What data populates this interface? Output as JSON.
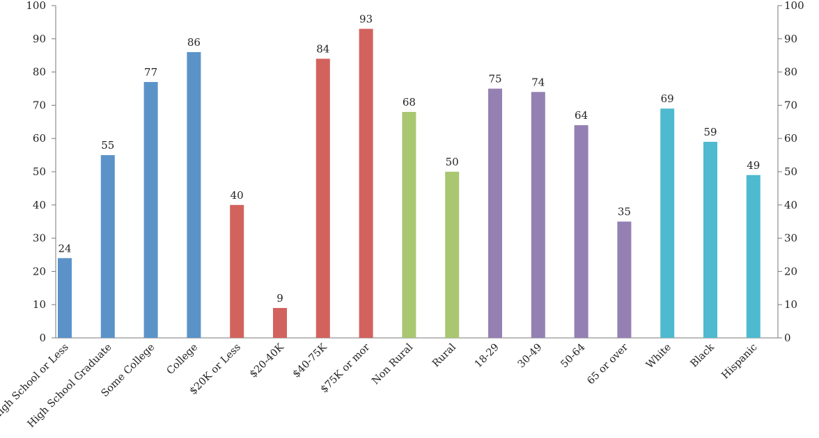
{
  "chart_data": {
    "type": "bar",
    "title": "",
    "xlabel": "",
    "ylabel": "",
    "ylim": [
      0,
      100
    ],
    "yticks": [
      0,
      10,
      20,
      30,
      40,
      50,
      60,
      70,
      80,
      90,
      100
    ],
    "secondary_y_axis": true,
    "grid": false,
    "legend": "none",
    "categories": [
      "High School or Less",
      "High School Graduate",
      "Some College",
      "College",
      "$20K or Less",
      "$20-40K",
      "$40-75K",
      "$75K or mor",
      "Non Rural",
      "Rural",
      "18-29",
      "30-49",
      "50-64",
      "65 or over",
      "White",
      "Black",
      "Hispanic"
    ],
    "values": [
      24,
      55,
      77,
      86,
      40,
      9,
      84,
      93,
      68,
      50,
      75,
      74,
      64,
      35,
      69,
      59,
      49
    ],
    "groups": [
      {
        "color": "#5b93c9",
        "members": [
          0,
          1,
          2,
          3
        ]
      },
      {
        "color": "#d2625e",
        "members": [
          4,
          5,
          6,
          7
        ]
      },
      {
        "color": "#a9c671",
        "members": [
          8,
          9
        ]
      },
      {
        "color": "#9480b3",
        "members": [
          10,
          11,
          12,
          13
        ]
      },
      {
        "color": "#4fb9cf",
        "members": [
          14,
          15,
          16
        ]
      }
    ],
    "axis_color": "#777777"
  }
}
